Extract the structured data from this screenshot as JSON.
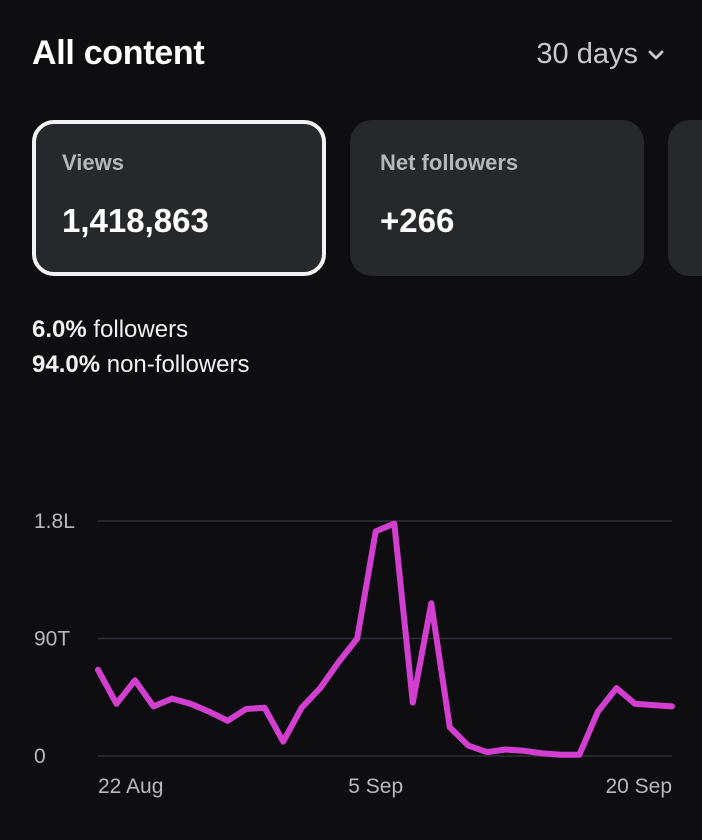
{
  "header": {
    "title": "All content",
    "range_label": "30 days"
  },
  "cards": [
    {
      "label": "Views",
      "value": "1,418,863",
      "selected": true
    },
    {
      "label": "Net followers",
      "value": "+266",
      "selected": false
    }
  ],
  "breakdown": [
    {
      "pct": "6.0%",
      "label": "followers"
    },
    {
      "pct": "94.0%",
      "label": "non-followers"
    }
  ],
  "chart_data": {
    "type": "line",
    "title": "",
    "xlabel": "",
    "ylabel": "",
    "y_tick_labels": [
      "1.8L",
      "90T",
      "0"
    ],
    "y_ticks": [
      180000,
      90000,
      0
    ],
    "ylim": [
      0,
      180000
    ],
    "x_tick_labels": [
      "22 Aug",
      "5 Sep",
      "20 Sep"
    ],
    "x_tick_days": [
      1,
      15,
      30
    ],
    "x": [
      0,
      1,
      2,
      3,
      4,
      5,
      6,
      7,
      8,
      9,
      10,
      11,
      12,
      13,
      14,
      15,
      16,
      17,
      18,
      19,
      20,
      21,
      22,
      23,
      24,
      25,
      26,
      27,
      28,
      29,
      30,
      31
    ],
    "series": [
      {
        "color": "#d23fd0",
        "values": [
          66000,
          40000,
          58000,
          38000,
          44000,
          40000,
          34000,
          27000,
          36000,
          37000,
          11000,
          37000,
          52000,
          72000,
          90000,
          172000,
          178000,
          41000,
          117000,
          22000,
          8000,
          3000,
          5000,
          4000,
          2000,
          1000,
          1000,
          34000,
          52000,
          40000,
          39000,
          38000
        ]
      }
    ],
    "grid": true,
    "line_color": "#d23fd0"
  }
}
